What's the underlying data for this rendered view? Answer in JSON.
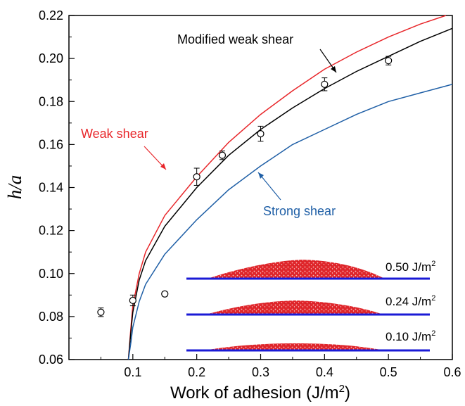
{
  "chart_data": {
    "type": "line",
    "xlabel": "Work of adhesion (J/m",
    "xlabel_sup": "2",
    "xlabel_end": ")",
    "ylabel": "h/a",
    "xlim": [
      0.0,
      0.6
    ],
    "ylim": [
      0.06,
      0.22
    ],
    "x_ticks": [
      {
        "value": 0.1,
        "label": "0.1"
      },
      {
        "value": 0.2,
        "label": "0.2"
      },
      {
        "value": 0.3,
        "label": "0.3"
      },
      {
        "value": 0.4,
        "label": "0.4"
      },
      {
        "value": 0.5,
        "label": "0.5"
      },
      {
        "value": 0.6,
        "label": "0.6"
      }
    ],
    "y_ticks": [
      {
        "value": 0.06,
        "label": "0.06"
      },
      {
        "value": 0.08,
        "label": "0.08"
      },
      {
        "value": 0.1,
        "label": "0.10"
      },
      {
        "value": 0.12,
        "label": "0.12"
      },
      {
        "value": 0.14,
        "label": "0.14"
      },
      {
        "value": 0.16,
        "label": "0.16"
      },
      {
        "value": 0.18,
        "label": "0.18"
      },
      {
        "value": 0.2,
        "label": "0.20"
      },
      {
        "value": 0.22,
        "label": "0.22"
      }
    ],
    "series": [
      {
        "name": "Weak shear",
        "color": "#e8262a",
        "x": [
          0.093,
          0.097,
          0.1,
          0.11,
          0.12,
          0.15,
          0.2,
          0.25,
          0.3,
          0.35,
          0.4,
          0.45,
          0.5,
          0.55,
          0.59
        ],
        "y": [
          0.06,
          0.075,
          0.085,
          0.1,
          0.11,
          0.127,
          0.145,
          0.161,
          0.174,
          0.185,
          0.195,
          0.203,
          0.21,
          0.216,
          0.22
        ]
      },
      {
        "name": "Modified weak shear",
        "color": "#000000",
        "x": [
          0.093,
          0.097,
          0.1,
          0.11,
          0.12,
          0.15,
          0.2,
          0.25,
          0.3,
          0.35,
          0.4,
          0.45,
          0.5,
          0.55,
          0.6
        ],
        "y": [
          0.06,
          0.073,
          0.082,
          0.097,
          0.106,
          0.122,
          0.14,
          0.155,
          0.167,
          0.177,
          0.186,
          0.194,
          0.201,
          0.208,
          0.214
        ]
      },
      {
        "name": "Strong shear",
        "color": "#1f5fa6",
        "x": [
          0.093,
          0.097,
          0.1,
          0.11,
          0.12,
          0.15,
          0.2,
          0.25,
          0.3,
          0.35,
          0.4,
          0.45,
          0.5,
          0.55,
          0.6
        ],
        "y": [
          0.06,
          0.068,
          0.075,
          0.087,
          0.095,
          0.109,
          0.125,
          0.139,
          0.15,
          0.16,
          0.167,
          0.174,
          0.18,
          0.184,
          0.188
        ]
      }
    ],
    "data_points": [
      {
        "x": 0.05,
        "y": 0.082,
        "err": 0.002
      },
      {
        "x": 0.1,
        "y": 0.0875,
        "err": 0.0025
      },
      {
        "x": 0.15,
        "y": 0.0905,
        "err": 0.001
      },
      {
        "x": 0.2,
        "y": 0.145,
        "err": 0.004
      },
      {
        "x": 0.24,
        "y": 0.155,
        "err": 0.002
      },
      {
        "x": 0.3,
        "y": 0.165,
        "err": 0.0035
      },
      {
        "x": 0.4,
        "y": 0.188,
        "err": 0.003
      },
      {
        "x": 0.5,
        "y": 0.199,
        "err": 0.002
      }
    ],
    "annotations": [
      {
        "text": "Weak shear",
        "color": "#e8262a"
      },
      {
        "text": "Modified weak shear",
        "color": "#000000"
      },
      {
        "text": "Strong shear",
        "color": "#1f5fa6"
      }
    ],
    "inset_labels": [
      {
        "value": "0.50 J/m",
        "sup": "2"
      },
      {
        "value": "0.24 J/m",
        "sup": "2"
      },
      {
        "value": "0.10 J/m",
        "sup": "2"
      }
    ],
    "inset_colors": {
      "substrate": "#1a1ad6",
      "droplet": "#e0262b"
    }
  }
}
